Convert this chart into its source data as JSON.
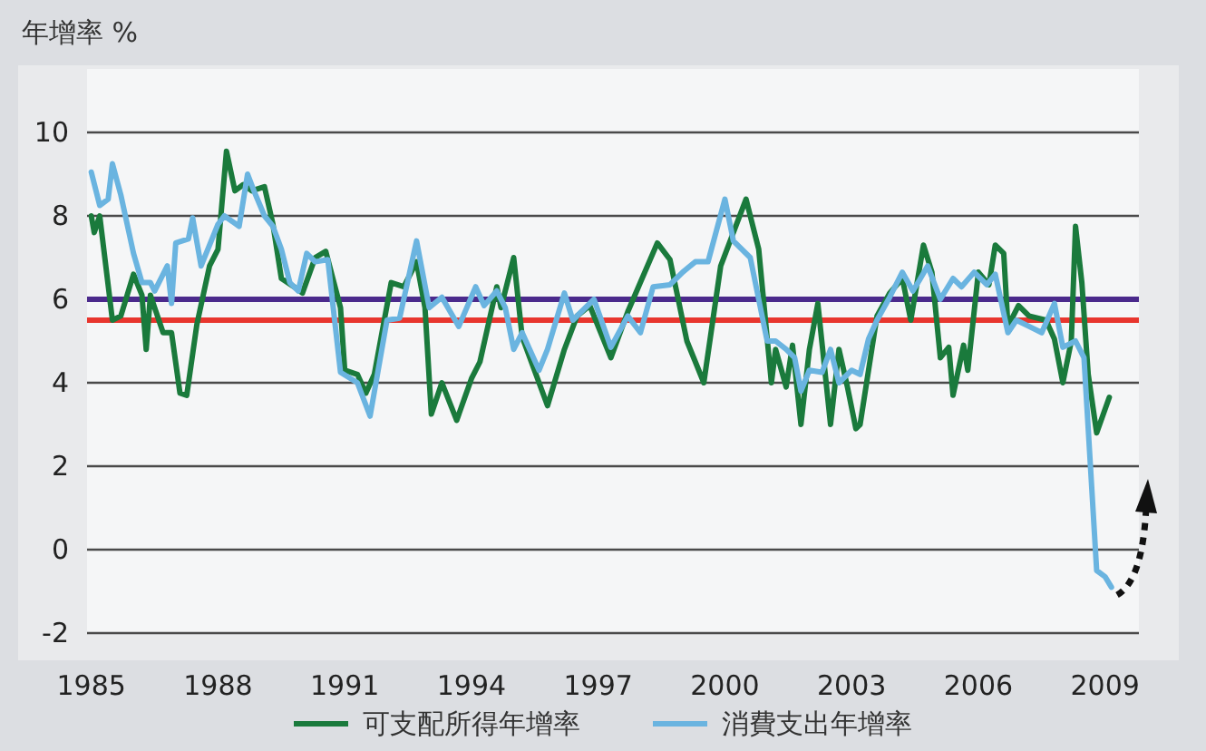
{
  "chart_data": {
    "type": "line",
    "ylabel": "年增率 %",
    "xlim": [
      1984.9,
      2009.8
    ],
    "ylim": [
      -2,
      10
    ],
    "xticks": [
      1985,
      1988,
      1991,
      1994,
      1997,
      2000,
      2003,
      2006,
      2009
    ],
    "yticks": [
      -2,
      0,
      2,
      4,
      6,
      8,
      10
    ],
    "grid": "y",
    "legend": "bottom",
    "marker": "none",
    "line_style": "solid",
    "ref_lines": [
      {
        "axis": "y",
        "value": 6,
        "color": "#4b2a8c"
      },
      {
        "axis": "y",
        "value": 5.5,
        "color": "#e8362e"
      }
    ],
    "series": [
      {
        "name": "可支配所得年增率",
        "color": "#1a7a3c",
        "x": [
          1985.0,
          1985.07,
          1985.2,
          1985.5,
          1985.7,
          1986.0,
          1986.2,
          1986.3,
          1986.4,
          1986.7,
          1986.9,
          1987.1,
          1987.26,
          1987.5,
          1987.8,
          1988.0,
          1988.2,
          1988.4,
          1988.6,
          1988.8,
          1989.1,
          1989.3,
          1989.5,
          1989.8,
          1990.0,
          1990.3,
          1990.55,
          1990.9,
          1991.0,
          1991.3,
          1991.5,
          1991.7,
          1992.1,
          1992.4,
          1992.7,
          1992.9,
          1993.05,
          1993.3,
          1993.65,
          1994.0,
          1994.2,
          1994.6,
          1994.7,
          1995.0,
          1995.2,
          1995.8,
          1996.2,
          1996.5,
          1996.8,
          1997.3,
          1997.7,
          1998.4,
          1998.7,
          1999.1,
          1999.5,
          1999.9,
          2000.5,
          2000.8,
          2001.1,
          2001.2,
          2001.45,
          2001.6,
          2001.8,
          2002.0,
          2002.2,
          2002.5,
          2002.7,
          2002.9,
          2003.1,
          2003.2,
          2003.6,
          2003.9,
          2004.2,
          2004.4,
          2004.7,
          2004.9,
          2005.1,
          2005.3,
          2005.4,
          2005.65,
          2005.75,
          2006.0,
          2006.25,
          2006.4,
          2006.6,
          2006.7,
          2006.95,
          2007.2,
          2007.6,
          2007.8,
          2008.0,
          2008.2,
          2008.3,
          2008.45,
          2008.6,
          2008.8,
          2009.1
        ],
        "values": [
          8.0,
          7.6,
          8.0,
          5.5,
          5.6,
          6.6,
          6.1,
          4.8,
          6.1,
          5.2,
          5.2,
          3.75,
          3.7,
          5.4,
          6.8,
          7.2,
          9.55,
          8.6,
          8.75,
          8.6,
          8.7,
          7.8,
          6.5,
          6.3,
          6.15,
          7.0,
          7.15,
          5.8,
          4.3,
          4.2,
          3.75,
          4.2,
          6.4,
          6.3,
          6.9,
          5.8,
          3.25,
          4.0,
          3.1,
          4.1,
          4.5,
          6.3,
          5.8,
          7.0,
          5.1,
          3.45,
          4.8,
          5.6,
          5.85,
          4.6,
          5.7,
          7.35,
          6.95,
          5.0,
          4.0,
          6.8,
          8.4,
          7.2,
          4.0,
          4.8,
          3.9,
          4.9,
          3.0,
          4.8,
          5.9,
          3.0,
          4.8,
          3.9,
          2.9,
          3.0,
          5.6,
          6.15,
          6.5,
          5.5,
          7.3,
          6.65,
          4.6,
          4.85,
          3.7,
          4.9,
          4.3,
          6.65,
          6.35,
          7.3,
          7.1,
          5.35,
          5.85,
          5.6,
          5.5,
          5.05,
          4.0,
          5.0,
          7.75,
          6.4,
          4.2,
          2.8,
          3.65
        ]
      },
      {
        "name": "消費支出年增率",
        "color": "#6ab4e0",
        "x": [
          1985.0,
          1985.2,
          1985.4,
          1985.5,
          1985.7,
          1986.0,
          1986.2,
          1986.4,
          1986.5,
          1986.8,
          1986.9,
          1987.0,
          1987.3,
          1987.4,
          1987.6,
          1988.0,
          1988.15,
          1988.5,
          1988.7,
          1988.85,
          1989.1,
          1989.3,
          1989.5,
          1989.7,
          1989.9,
          1990.1,
          1990.3,
          1990.6,
          1990.9,
          1991.3,
          1991.6,
          1992.0,
          1992.3,
          1992.7,
          1993.0,
          1993.3,
          1993.7,
          1994.1,
          1994.3,
          1994.6,
          1994.8,
          1995.0,
          1995.2,
          1995.6,
          1995.8,
          1996.2,
          1996.4,
          1996.9,
          1997.3,
          1997.7,
          1998.0,
          1998.3,
          1998.7,
          1999.0,
          1999.3,
          1999.6,
          2000.0,
          2000.2,
          2000.6,
          2001.0,
          2001.2,
          2001.45,
          2001.65,
          2001.8,
          2002.0,
          2002.3,
          2002.5,
          2002.7,
          2003.0,
          2003.2,
          2003.4,
          2003.6,
          2003.9,
          2004.2,
          2004.45,
          2004.6,
          2004.8,
          2005.1,
          2005.4,
          2005.6,
          2005.9,
          2006.2,
          2006.4,
          2006.7,
          2006.9,
          2007.2,
          2007.5,
          2007.8,
          2008.0,
          2008.3,
          2008.5,
          2008.8,
          2009.0,
          2009.15
        ],
        "values": [
          9.05,
          8.25,
          8.4,
          9.25,
          8.5,
          7.1,
          6.4,
          6.4,
          6.2,
          6.8,
          5.9,
          7.35,
          7.45,
          7.95,
          6.8,
          7.8,
          8.0,
          7.75,
          9.0,
          8.6,
          8.0,
          7.75,
          7.2,
          6.4,
          6.2,
          7.1,
          6.9,
          6.95,
          4.25,
          4.0,
          3.2,
          5.5,
          5.55,
          7.4,
          5.8,
          6.05,
          5.35,
          6.3,
          5.85,
          6.2,
          5.8,
          4.8,
          5.2,
          4.3,
          4.8,
          6.15,
          5.5,
          6.0,
          4.85,
          5.6,
          5.2,
          6.3,
          6.35,
          6.65,
          6.9,
          6.9,
          8.4,
          7.4,
          7.0,
          5.0,
          5.0,
          4.8,
          4.6,
          3.8,
          4.3,
          4.25,
          4.8,
          4.0,
          4.3,
          4.2,
          5.05,
          5.5,
          6.05,
          6.65,
          6.2,
          6.45,
          6.8,
          6.0,
          6.5,
          6.3,
          6.65,
          6.35,
          6.6,
          5.2,
          5.5,
          5.35,
          5.2,
          5.9,
          4.85,
          5.0,
          4.6,
          -0.5,
          -0.65,
          -0.9
        ]
      }
    ]
  }
}
